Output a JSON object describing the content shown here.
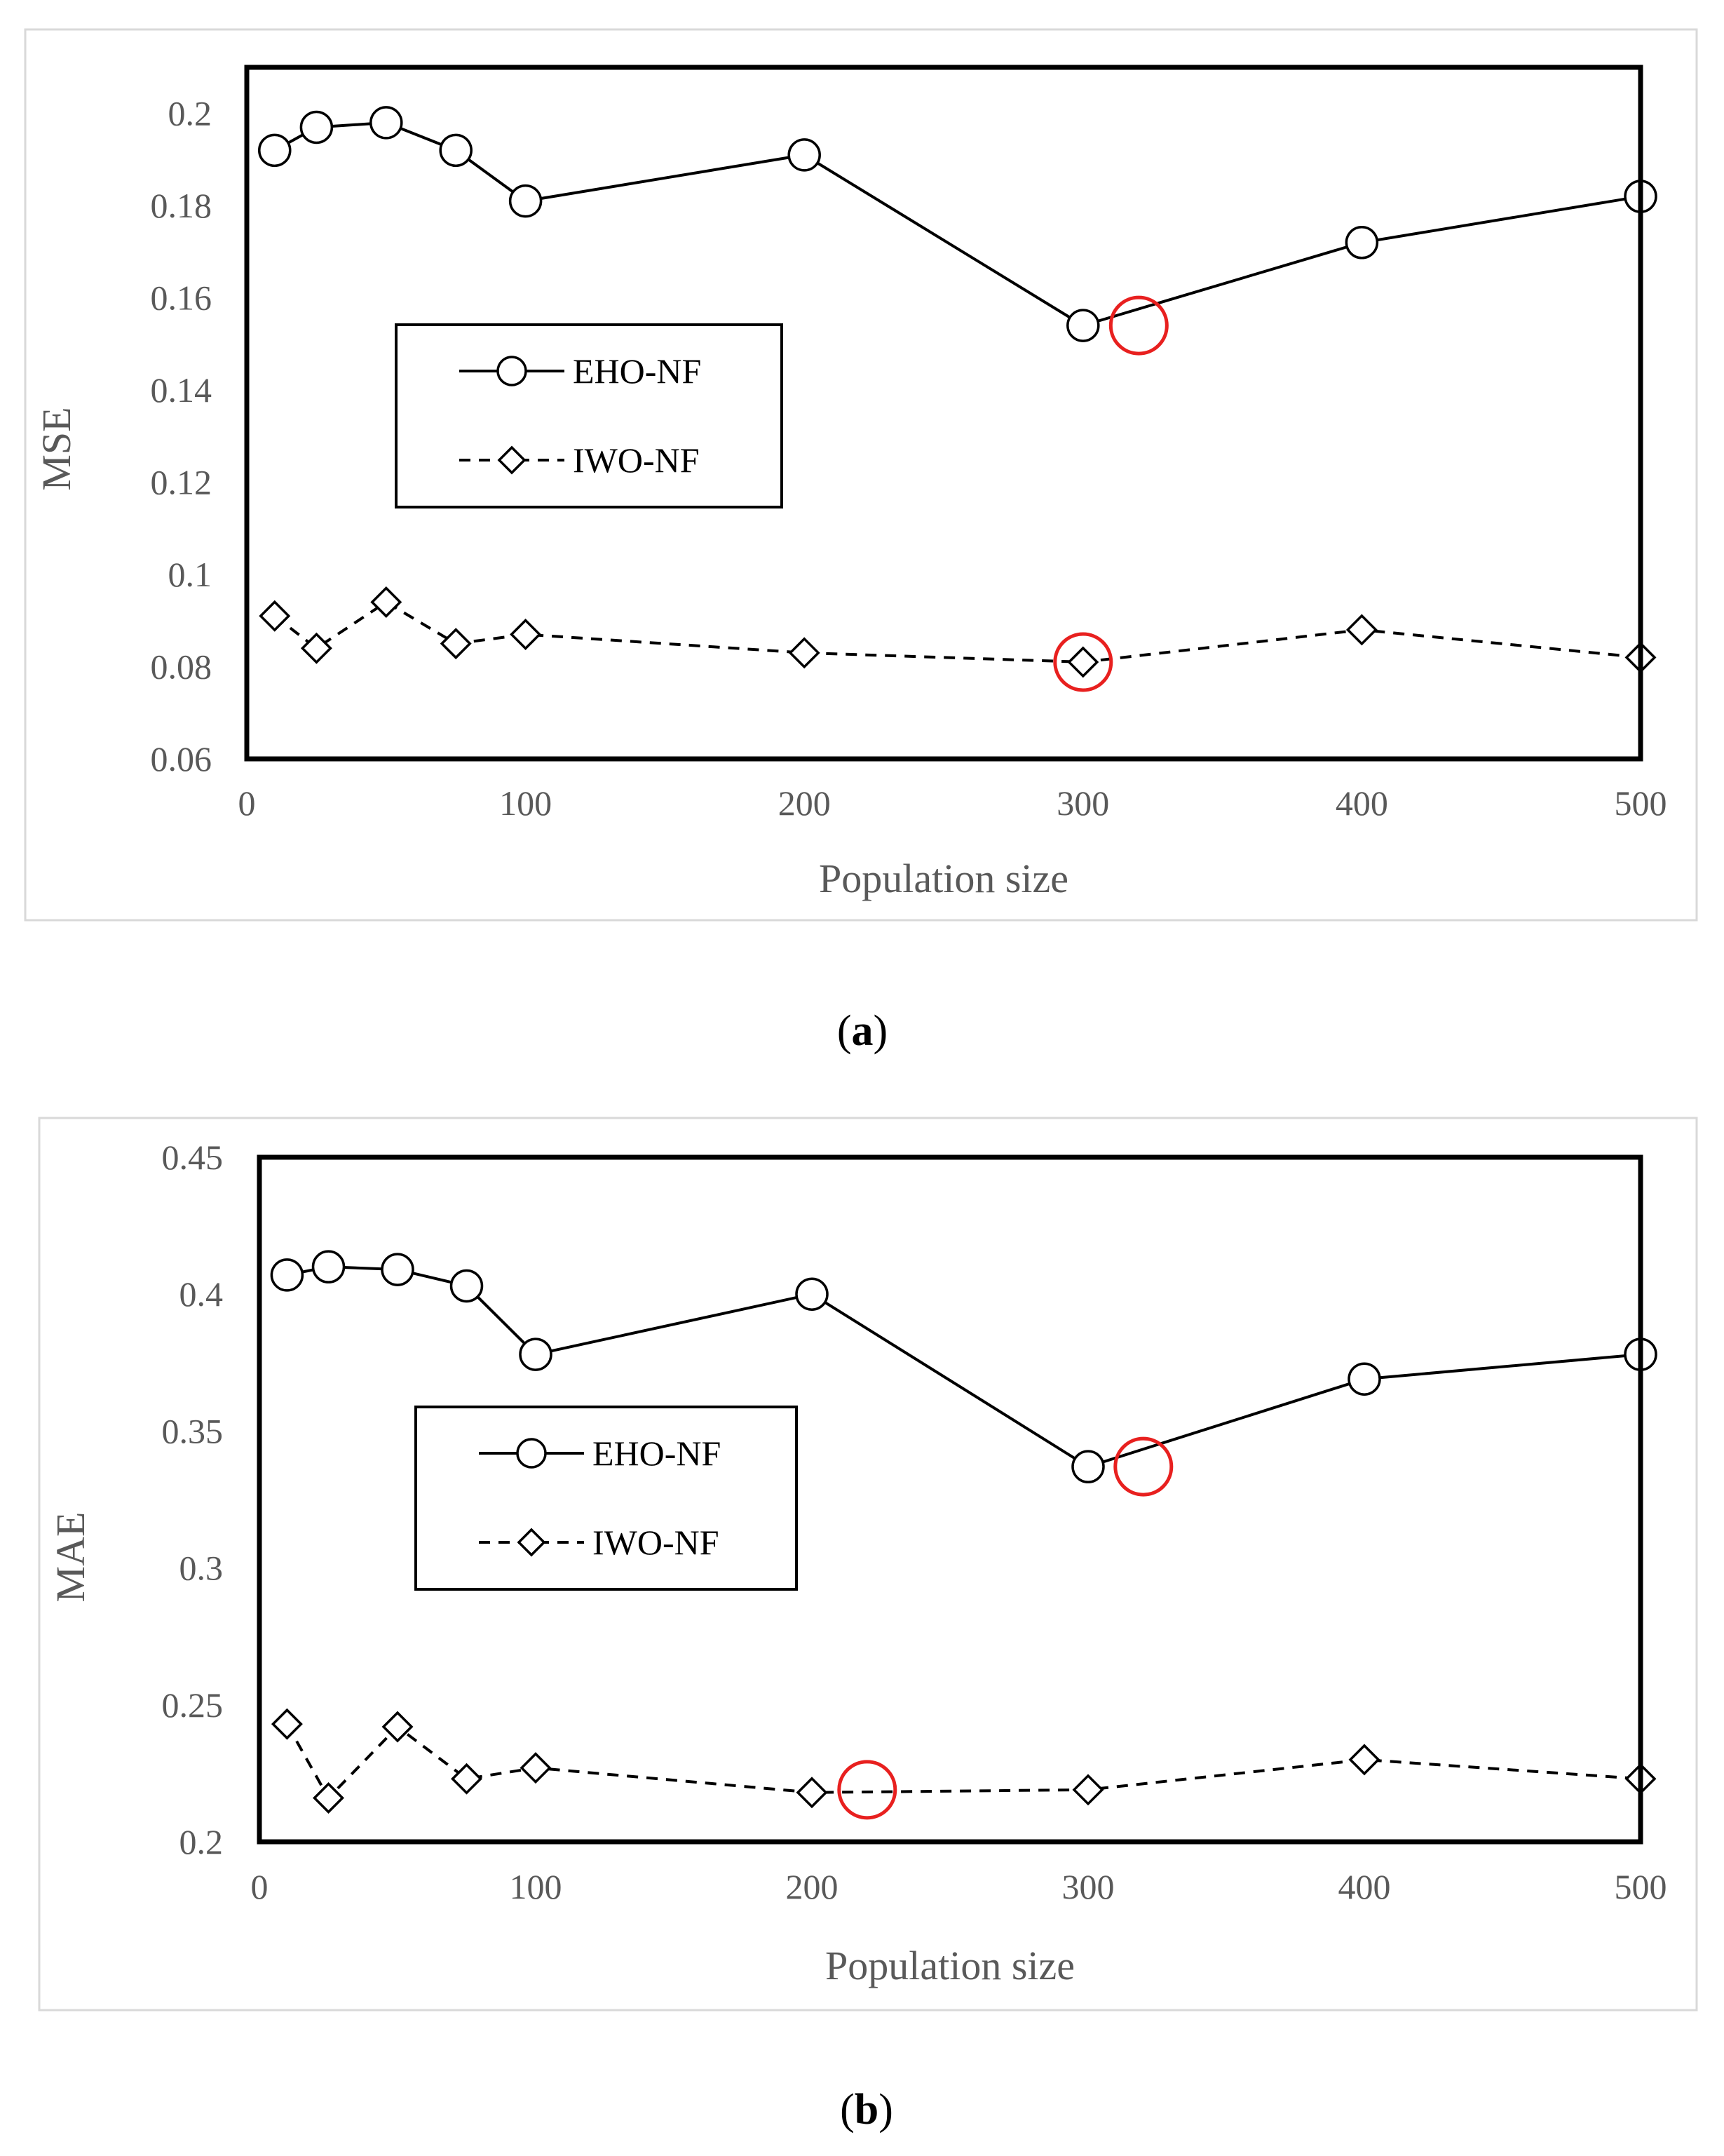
{
  "chart_data": [
    {
      "type": "line",
      "caption": "a",
      "xlabel": "Population size",
      "ylabel": "MSE",
      "xlim": [
        0,
        500
      ],
      "ylim": [
        0.06,
        0.21
      ],
      "xticks": [
        0,
        100,
        200,
        300,
        400,
        500
      ],
      "xtick_labels": [
        "0",
        "100",
        "200",
        "300",
        "400",
        "500"
      ],
      "yticks": [
        0.06,
        0.08,
        0.1,
        0.12,
        0.14,
        0.16,
        0.18,
        0.2
      ],
      "ytick_labels": [
        "0.06",
        "0.08",
        "0.1",
        "0.12",
        "0.14",
        "0.16",
        "0.18",
        "0.2"
      ],
      "legend_position": "center-left",
      "x": [
        10,
        25,
        50,
        75,
        100,
        200,
        300,
        400,
        500
      ],
      "series": [
        {
          "name": "EHO-NF",
          "style": "solid",
          "marker": "circle",
          "values": [
            0.192,
            0.197,
            0.198,
            0.192,
            0.181,
            0.191,
            0.154,
            0.172,
            0.182
          ]
        },
        {
          "name": "IWO-NF",
          "style": "dashed",
          "marker": "diamond",
          "values": [
            0.091,
            0.084,
            0.094,
            0.085,
            0.087,
            0.083,
            0.081,
            0.088,
            0.082
          ]
        }
      ],
      "annotations": [
        {
          "type": "red-circle",
          "x": 320,
          "y": 0.154
        },
        {
          "type": "red-circle",
          "x": 300,
          "y": 0.081
        }
      ]
    },
    {
      "type": "line",
      "caption": "b",
      "xlabel": "Population size",
      "ylabel": "MAE",
      "xlim": [
        0,
        500
      ],
      "ylim": [
        0.2,
        0.45
      ],
      "xticks": [
        0,
        100,
        200,
        300,
        400,
        500
      ],
      "xtick_labels": [
        "0",
        "100",
        "200",
        "300",
        "400",
        "500"
      ],
      "yticks": [
        0.2,
        0.25,
        0.3,
        0.35,
        0.4,
        0.45
      ],
      "ytick_labels": [
        "0.2",
        "0.25",
        "0.3",
        "0.35",
        "0.4",
        "0.45"
      ],
      "legend_position": "center-left",
      "x": [
        10,
        25,
        50,
        75,
        100,
        200,
        300,
        400,
        500
      ],
      "series": [
        {
          "name": "EHO-NF",
          "style": "solid",
          "marker": "circle",
          "values": [
            0.407,
            0.41,
            0.409,
            0.403,
            0.378,
            0.4,
            0.337,
            0.369,
            0.378
          ]
        },
        {
          "name": "IWO-NF",
          "style": "dashed",
          "marker": "diamond",
          "values": [
            0.243,
            0.216,
            0.242,
            0.223,
            0.227,
            0.218,
            0.219,
            0.23,
            0.223
          ]
        }
      ],
      "annotations": [
        {
          "type": "red-circle",
          "x": 320,
          "y": 0.337
        },
        {
          "type": "red-circle",
          "x": 220,
          "y": 0.219
        }
      ]
    }
  ]
}
